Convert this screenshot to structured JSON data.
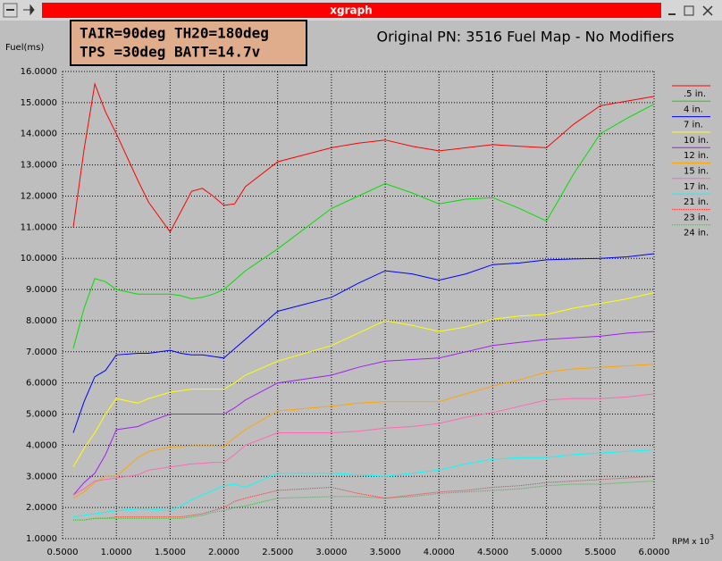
{
  "window_title": "xgraph",
  "chart_data": {
    "type": "line",
    "title": "Original PN: 3516 Fuel Map - No Modifiers",
    "annotation": [
      "TAIR=90deg TH20=180deg",
      "TPS =30deg BATT=14.7v"
    ],
    "ylabel": "Fuel(ms)",
    "xlabel": "RPM x 10",
    "xlabel_sup": "3",
    "grid": true,
    "legend": "right",
    "xlim": [
      0.5,
      6.0
    ],
    "ylim": [
      1.0,
      16.0
    ],
    "xticks": [
      {
        "value": 0.5,
        "label": "0.5000"
      },
      {
        "value": 1.0,
        "label": "1.0000"
      },
      {
        "value": 1.5,
        "label": "1.5000"
      },
      {
        "value": 2.0,
        "label": "2.0000"
      },
      {
        "value": 2.5,
        "label": "2.5000"
      },
      {
        "value": 3.0,
        "label": "3.0000"
      },
      {
        "value": 3.5,
        "label": "3.5000"
      },
      {
        "value": 4.0,
        "label": "4.0000"
      },
      {
        "value": 4.5,
        "label": "4.5000"
      },
      {
        "value": 5.0,
        "label": "5.0000"
      },
      {
        "value": 5.5,
        "label": "5.5000"
      },
      {
        "value": 6.0,
        "label": "6.0000"
      }
    ],
    "yticks": [
      {
        "value": 1,
        "label": "1.0000"
      },
      {
        "value": 2,
        "label": "2.0000"
      },
      {
        "value": 3,
        "label": "3.0000"
      },
      {
        "value": 4,
        "label": "4.0000"
      },
      {
        "value": 5,
        "label": "5.0000"
      },
      {
        "value": 6,
        "label": "6.0000"
      },
      {
        "value": 7,
        "label": "7.0000"
      },
      {
        "value": 8,
        "label": "8.0000"
      },
      {
        "value": 9,
        "label": "9.0000"
      },
      {
        "value": 10,
        "label": "10.0000"
      },
      {
        "value": 11,
        "label": "11.0000"
      },
      {
        "value": 12,
        "label": "12.0000"
      },
      {
        "value": 13,
        "label": "13.0000"
      },
      {
        "value": 14,
        "label": "14.0000"
      },
      {
        "value": 15,
        "label": "15.0000"
      },
      {
        "value": 16,
        "label": "16.0000"
      }
    ],
    "x": [
      0.6,
      0.7,
      0.8,
      0.9,
      1.0,
      1.2,
      1.3,
      1.5,
      1.6,
      1.7,
      1.8,
      1.9,
      2.0,
      2.1,
      2.2,
      2.5,
      3.0,
      3.25,
      3.5,
      3.75,
      4.0,
      4.25,
      4.5,
      4.75,
      5.0,
      5.25,
      5.5,
      5.75,
      6.0
    ],
    "series": [
      {
        "name": ".5 in.",
        "color": "#ff0000",
        "style": "solid",
        "values": [
          11.0,
          13.5,
          15.6,
          14.7,
          14.0,
          12.5,
          11.8,
          10.85,
          11.5,
          12.15,
          12.25,
          12.0,
          11.7,
          11.75,
          12.3,
          13.1,
          13.55,
          13.7,
          13.8,
          13.6,
          13.45,
          13.55,
          13.65,
          13.6,
          13.55,
          14.3,
          14.9,
          15.05,
          15.2
        ]
      },
      {
        "name": "4 in.",
        "color": "#00e000",
        "style": "solid",
        "values": [
          7.1,
          8.4,
          9.35,
          9.25,
          9.0,
          8.85,
          8.85,
          8.85,
          8.8,
          8.7,
          8.75,
          8.85,
          9.0,
          9.3,
          9.6,
          10.3,
          11.6,
          12.0,
          12.4,
          12.1,
          11.75,
          11.9,
          11.95,
          11.6,
          11.2,
          12.7,
          14.0,
          14.5,
          14.95
        ]
      },
      {
        "name": "7 in.",
        "color": "#0000ff",
        "style": "solid",
        "values": [
          4.4,
          5.4,
          6.2,
          6.4,
          6.9,
          6.95,
          6.95,
          7.05,
          6.95,
          6.9,
          6.9,
          6.85,
          6.8,
          7.1,
          7.4,
          8.3,
          8.75,
          9.2,
          9.6,
          9.5,
          9.3,
          9.5,
          9.8,
          9.85,
          9.95,
          9.98,
          10.0,
          10.05,
          10.15
        ]
      },
      {
        "name": "10 in.",
        "color": "#ffff00",
        "style": "solid",
        "values": [
          3.3,
          3.9,
          4.4,
          5.0,
          5.5,
          5.35,
          5.5,
          5.7,
          5.75,
          5.8,
          5.8,
          5.8,
          5.8,
          6.0,
          6.25,
          6.7,
          7.2,
          7.6,
          8.0,
          7.85,
          7.65,
          7.8,
          8.05,
          8.15,
          8.2,
          8.4,
          8.55,
          8.7,
          8.9
        ]
      },
      {
        "name": "12 in.",
        "color": "#a020f0",
        "style": "solid",
        "values": [
          2.4,
          2.8,
          3.1,
          3.7,
          4.5,
          4.6,
          4.75,
          5.0,
          5.0,
          5.0,
          5.0,
          5.0,
          5.0,
          5.2,
          5.45,
          6.0,
          6.25,
          6.5,
          6.7,
          6.75,
          6.8,
          7.0,
          7.2,
          7.3,
          7.4,
          7.45,
          7.5,
          7.6,
          7.65
        ]
      },
      {
        "name": "15 in.",
        "color": "#ffa500",
        "style": "solid",
        "values": [
          2.3,
          2.5,
          2.8,
          3.0,
          3.0,
          3.6,
          3.8,
          3.95,
          3.95,
          3.98,
          3.98,
          3.98,
          3.95,
          4.25,
          4.5,
          5.1,
          5.25,
          5.35,
          5.4,
          5.4,
          5.4,
          5.65,
          5.9,
          6.1,
          6.35,
          6.45,
          6.5,
          6.55,
          6.6
        ]
      },
      {
        "name": "17 in.",
        "color": "#ff69b4",
        "style": "solid",
        "values": [
          2.4,
          2.6,
          2.85,
          2.9,
          2.95,
          3.05,
          3.2,
          3.3,
          3.35,
          3.4,
          3.42,
          3.45,
          3.45,
          3.7,
          4.0,
          4.4,
          4.4,
          4.45,
          4.55,
          4.6,
          4.7,
          4.9,
          5.05,
          5.25,
          5.45,
          5.5,
          5.5,
          5.55,
          5.65
        ]
      },
      {
        "name": "21 in.",
        "color": "#00ffff",
        "style": "solid",
        "values": [
          1.7,
          1.75,
          1.8,
          1.85,
          1.9,
          1.95,
          1.95,
          1.9,
          2.05,
          2.25,
          2.4,
          2.55,
          2.7,
          2.75,
          2.65,
          3.1,
          3.1,
          3.05,
          3.0,
          3.1,
          3.2,
          3.4,
          3.55,
          3.6,
          3.6,
          3.7,
          3.75,
          3.8,
          3.85
        ]
      },
      {
        "name": "23 in.",
        "color": "#ff3030",
        "style": "dotted",
        "values": [
          1.6,
          1.6,
          1.65,
          1.65,
          1.7,
          1.7,
          1.7,
          1.7,
          1.7,
          1.75,
          1.8,
          1.9,
          2.0,
          2.2,
          2.3,
          2.55,
          2.65,
          2.45,
          2.3,
          2.4,
          2.5,
          2.55,
          2.65,
          2.7,
          2.8,
          2.85,
          2.9,
          2.95,
          3.0
        ]
      },
      {
        "name": "24 in.",
        "color": "#30c030",
        "style": "dotted",
        "values": [
          1.6,
          1.6,
          1.65,
          1.65,
          1.65,
          1.65,
          1.65,
          1.65,
          1.65,
          1.7,
          1.75,
          1.85,
          1.9,
          2.0,
          2.05,
          2.3,
          2.35,
          2.35,
          2.3,
          2.35,
          2.45,
          2.5,
          2.55,
          2.6,
          2.7,
          2.75,
          2.75,
          2.8,
          2.85
        ]
      }
    ]
  }
}
